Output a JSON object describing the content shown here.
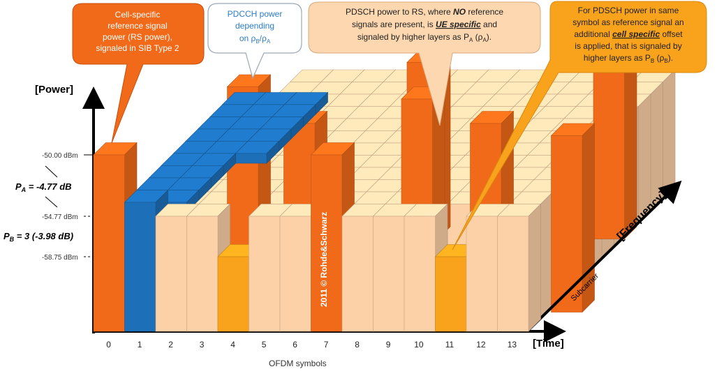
{
  "axes": {
    "power_label": "[Power]",
    "time_label": "[Time]",
    "frequency_label": "[Frequency]",
    "subcarrier_label": "Subcarrier",
    "ofdm_label": "OFDM symbols",
    "symbols": [
      "0",
      "1",
      "2",
      "3",
      "4",
      "5",
      "6",
      "7",
      "8",
      "9",
      "10",
      "11",
      "12",
      "13"
    ]
  },
  "levels": {
    "rs": "-50.00 dBm",
    "pdcch": "-54.77 dBm",
    "pdsch_b": "-58.75 dBm"
  },
  "annotations": {
    "pa_main": "P",
    "pa_sub": "A",
    "pa_value": " = -4.77 dB",
    "pb_main": "P",
    "pb_sub": "B",
    "pb_value": " = 3 (-3.98 dB)"
  },
  "callouts": {
    "rs_lines": [
      "Cell-specific",
      "reference signal",
      "power (RS power),",
      "signaled in SIB Type 2"
    ],
    "pdcch_lines": [
      "PDCCH power",
      "depending"
    ],
    "pdcch_formula": {
      "rho1": "ρ",
      "sub1": "B",
      "slash": "/",
      "rho2": "ρ",
      "sub2": "A",
      "prefix": "on "
    },
    "pdsch_a": {
      "line1": "PDSCH power to RS, where ",
      "line1_em": "NO",
      "line1_end": " reference",
      "line2": "signals are present, is ",
      "line2_em": "UE specific",
      "line2_end": " and",
      "line3": "signaled by higher layers as P",
      "line3_sub": "A",
      "line3_end": " (ρ",
      "line3_sub2": "A",
      "line3_close": ")."
    },
    "pdsch_b": {
      "line1": "For PDSCH power in same",
      "line2": "symbol as reference signal an",
      "line3": "additional ",
      "line3_em": "cell specific",
      "line3_end": " offset",
      "line4": "is applied, that is signaled by",
      "line5": "higher layers as P",
      "line5_sub": "B",
      "line5_end": " (ρ",
      "line5_sub2": "B",
      "line5_close": ")."
    }
  },
  "watermark": "2011 © Rohde&Schwarz",
  "colors": {
    "rs": "#f06a1a",
    "pdcch": "#1d6fb8",
    "pdsch": "#fcd1a8",
    "pdsch_b": "#f9a21c",
    "axis": "#000000"
  }
}
